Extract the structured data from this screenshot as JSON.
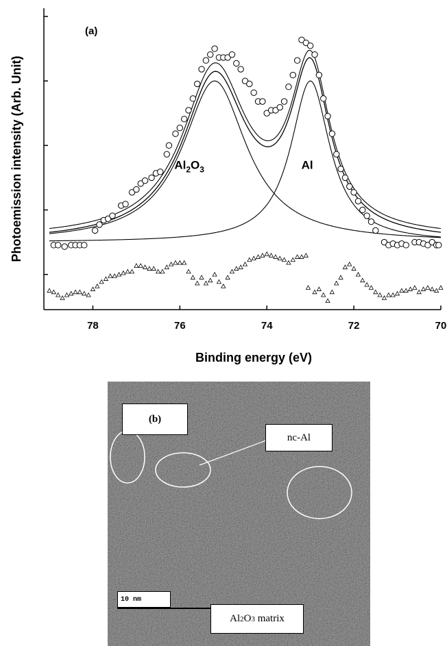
{
  "chart_data": {
    "type": "scatter",
    "panel_label": "(a)",
    "xlabel": "Binding energy (eV)",
    "ylabel": "Photoemission intensity (Arb. Unit)",
    "x_reversed": true,
    "xlim": [
      79,
      70
    ],
    "ylim": [
      0,
      100
    ],
    "y_tick_labels_shown": false,
    "x_ticks": [
      78,
      76,
      74,
      72,
      70
    ],
    "x_tick_labels": [
      "78",
      "76",
      "74",
      "72",
      "70"
    ],
    "y_ticks": [
      12,
      34,
      56,
      78,
      100
    ],
    "annotations": [
      {
        "text_main": "Al",
        "text_sub": "2",
        "text_main2": "O",
        "text_sub2": "3",
        "x": 76.0,
        "y": 48
      },
      {
        "text_main": "Al",
        "x": 73.0,
        "y": 48
      }
    ],
    "peaks": [
      {
        "center": 75.2,
        "amplitude": 55,
        "hwhm": 0.9
      },
      {
        "center": 73.0,
        "amplitude": 55,
        "hwhm": 0.55
      }
    ],
    "baseline": 23,
    "data_points": [
      [
        78.9,
        22
      ],
      [
        78.8,
        22
      ],
      [
        78.65,
        21.5
      ],
      [
        78.5,
        22
      ],
      [
        78.4,
        22
      ],
      [
        78.3,
        22
      ],
      [
        78.2,
        22
      ],
      [
        77.95,
        27
      ],
      [
        77.85,
        29
      ],
      [
        77.75,
        30.5
      ],
      [
        77.65,
        31
      ],
      [
        77.55,
        32
      ],
      [
        77.35,
        35.5
      ],
      [
        77.25,
        36
      ],
      [
        77.1,
        40
      ],
      [
        77.0,
        41
      ],
      [
        76.9,
        43
      ],
      [
        76.8,
        44
      ],
      [
        76.65,
        45
      ],
      [
        76.55,
        46.5
      ],
      [
        76.45,
        47
      ],
      [
        76.3,
        53
      ],
      [
        76.25,
        56
      ],
      [
        76.1,
        60
      ],
      [
        76.0,
        62
      ],
      [
        75.9,
        65
      ],
      [
        75.8,
        68
      ],
      [
        75.7,
        72
      ],
      [
        75.6,
        77
      ],
      [
        75.5,
        82
      ],
      [
        75.4,
        85
      ],
      [
        75.3,
        87
      ],
      [
        75.2,
        89
      ],
      [
        75.1,
        86
      ],
      [
        75.0,
        86
      ],
      [
        74.9,
        86
      ],
      [
        74.8,
        87
      ],
      [
        74.7,
        84
      ],
      [
        74.6,
        82
      ],
      [
        74.5,
        78
      ],
      [
        74.4,
        77
      ],
      [
        74.3,
        74
      ],
      [
        74.2,
        71
      ],
      [
        74.1,
        71
      ],
      [
        74.0,
        67
      ],
      [
        73.9,
        68
      ],
      [
        73.8,
        68
      ],
      [
        73.7,
        69
      ],
      [
        73.6,
        71
      ],
      [
        73.5,
        76
      ],
      [
        73.4,
        80
      ],
      [
        73.3,
        85
      ],
      [
        73.2,
        92
      ],
      [
        73.1,
        91
      ],
      [
        73.0,
        90
      ],
      [
        72.9,
        87
      ],
      [
        72.8,
        80
      ],
      [
        72.7,
        72
      ],
      [
        72.6,
        66
      ],
      [
        72.5,
        60
      ],
      [
        72.4,
        53
      ],
      [
        72.3,
        48
      ],
      [
        72.2,
        45
      ],
      [
        72.1,
        42
      ],
      [
        72.0,
        40
      ],
      [
        71.9,
        37
      ],
      [
        71.8,
        34
      ],
      [
        71.7,
        32
      ],
      [
        71.6,
        30
      ],
      [
        71.5,
        27
      ],
      [
        71.3,
        23
      ],
      [
        71.2,
        22
      ],
      [
        71.1,
        22.5
      ],
      [
        71.0,
        22
      ],
      [
        70.9,
        22.5
      ],
      [
        70.8,
        22
      ],
      [
        70.6,
        23
      ],
      [
        70.5,
        23
      ],
      [
        70.4,
        22.5
      ],
      [
        70.3,
        22
      ],
      [
        70.2,
        23
      ],
      [
        70.1,
        22
      ],
      [
        70.05,
        22
      ]
    ],
    "residuals": [
      [
        79.0,
        6.5
      ],
      [
        78.9,
        6
      ],
      [
        78.8,
        5
      ],
      [
        78.7,
        4
      ],
      [
        78.6,
        5
      ],
      [
        78.5,
        5.5
      ],
      [
        78.4,
        6
      ],
      [
        78.3,
        6
      ],
      [
        78.2,
        5.5
      ],
      [
        78.1,
        5
      ],
      [
        78.0,
        7
      ],
      [
        77.9,
        8
      ],
      [
        77.8,
        9.5
      ],
      [
        77.7,
        10.5
      ],
      [
        77.6,
        11.5
      ],
      [
        77.5,
        11.5
      ],
      [
        77.4,
        12
      ],
      [
        77.3,
        12.5
      ],
      [
        77.2,
        13
      ],
      [
        77.1,
        13
      ],
      [
        77.0,
        15
      ],
      [
        76.9,
        15
      ],
      [
        76.8,
        14.5
      ],
      [
        76.7,
        14
      ],
      [
        76.6,
        14
      ],
      [
        76.5,
        13
      ],
      [
        76.4,
        13
      ],
      [
        76.3,
        14.5
      ],
      [
        76.2,
        15.5
      ],
      [
        76.1,
        16
      ],
      [
        76.0,
        16
      ],
      [
        75.9,
        16
      ],
      [
        75.8,
        13
      ],
      [
        75.7,
        11
      ],
      [
        75.6,
        9
      ],
      [
        75.5,
        11
      ],
      [
        75.4,
        9
      ],
      [
        75.3,
        10
      ],
      [
        75.2,
        12
      ],
      [
        75.1,
        9.5
      ],
      [
        75.0,
        8
      ],
      [
        74.9,
        11
      ],
      [
        74.8,
        13
      ],
      [
        74.7,
        14
      ],
      [
        74.6,
        14.5
      ],
      [
        74.5,
        15.5
      ],
      [
        74.4,
        17
      ],
      [
        74.3,
        17.5
      ],
      [
        74.2,
        18
      ],
      [
        74.1,
        18.5
      ],
      [
        74.0,
        19
      ],
      [
        73.9,
        18.5
      ],
      [
        73.8,
        18
      ],
      [
        73.7,
        17.5
      ],
      [
        73.6,
        17
      ],
      [
        73.5,
        16
      ],
      [
        73.4,
        17
      ],
      [
        73.3,
        18
      ],
      [
        73.2,
        18
      ],
      [
        73.1,
        18.5
      ],
      [
        73.05,
        7.5
      ],
      [
        72.9,
        6
      ],
      [
        72.8,
        7
      ],
      [
        72.7,
        5
      ],
      [
        72.6,
        3
      ],
      [
        72.5,
        6
      ],
      [
        72.4,
        9
      ],
      [
        72.3,
        11
      ],
      [
        72.2,
        14.5
      ],
      [
        72.1,
        15.5
      ],
      [
        72.0,
        14
      ],
      [
        71.9,
        12
      ],
      [
        71.8,
        10
      ],
      [
        71.7,
        8.5
      ],
      [
        71.6,
        7.5
      ],
      [
        71.5,
        6
      ],
      [
        71.4,
        5
      ],
      [
        71.3,
        4
      ],
      [
        71.2,
        5
      ],
      [
        71.1,
        5
      ],
      [
        71.0,
        5.5
      ],
      [
        70.9,
        6.5
      ],
      [
        70.8,
        6.5
      ],
      [
        70.7,
        7
      ],
      [
        70.6,
        7.5
      ],
      [
        70.5,
        6
      ],
      [
        70.4,
        7
      ],
      [
        70.3,
        7.5
      ],
      [
        70.2,
        7
      ],
      [
        70.1,
        6.5
      ],
      [
        70.0,
        7.5
      ]
    ]
  },
  "panel_b": {
    "label": "(b)",
    "nc_label": "nc-Al",
    "matrix_label_main": "Al",
    "matrix_label_sub1": "2",
    "matrix_label_mid": "O",
    "matrix_label_sub2": "3",
    "matrix_label_end": " matrix",
    "scale_label": "10 nm"
  }
}
